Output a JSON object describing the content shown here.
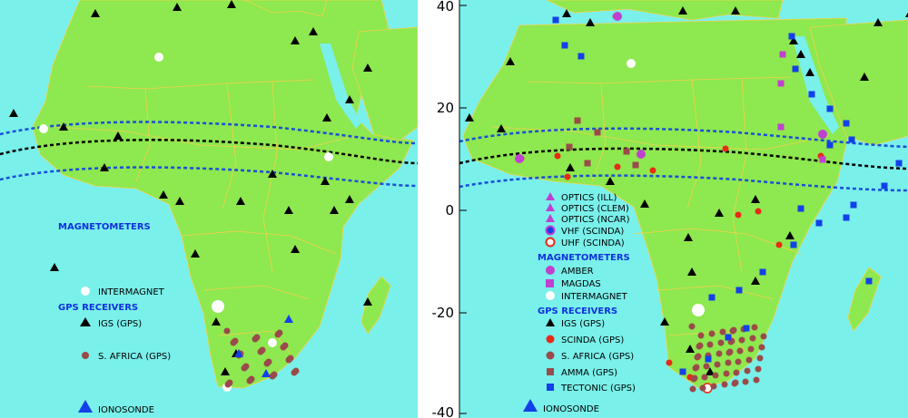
{
  "colors": {
    "ocean": "#79f0ea",
    "land": "#8ee84f",
    "border": "#f2d24a",
    "equator_line": "#000000",
    "crest_line": "#1a4fd8",
    "heading": "#1030e0",
    "magenta": "#c040d0",
    "red": "#e82a18",
    "brown": "#9b4a4a",
    "blue_square": "#1440e8",
    "black": "#000000",
    "white": "#ffffff"
  },
  "left": {
    "heading_magnetometers": "MAGNETOMETERS",
    "heading_gps": "GPS RECEIVERS",
    "legend": {
      "intermagnet": "INTERMAGNET",
      "igs": "IGS (GPS)",
      "safrica": "S. AFRICA (GPS)",
      "ionosonde": "IONOSONDE"
    }
  },
  "right": {
    "ticks": [
      "40",
      "20",
      "0",
      "-20",
      "-40"
    ],
    "legend": {
      "optics_ill": "OPTICS (ILL)",
      "optics_clem": "OPTICS (CLEM)",
      "optics_ncar": "OPTICS (NCAR)",
      "vhf": "VHF (SCINDA)",
      "uhf": "UHF (SCINDA)",
      "heading_magnetometers": "MAGNETOMETERS",
      "amber": "AMBER",
      "magdas": "MAGDAS",
      "intermagnet": "INTERMAGNET",
      "heading_gps": "GPS RECEIVERS",
      "igs": "IGS (GPS)",
      "scinda": "SCINDA (GPS)",
      "safrica": "S. AFRICA (GPS)",
      "amma": "AMMA (GPS)",
      "tectonic": "TECTONIC (GPS)",
      "ionosonde": "IONOSONDE"
    }
  }
}
